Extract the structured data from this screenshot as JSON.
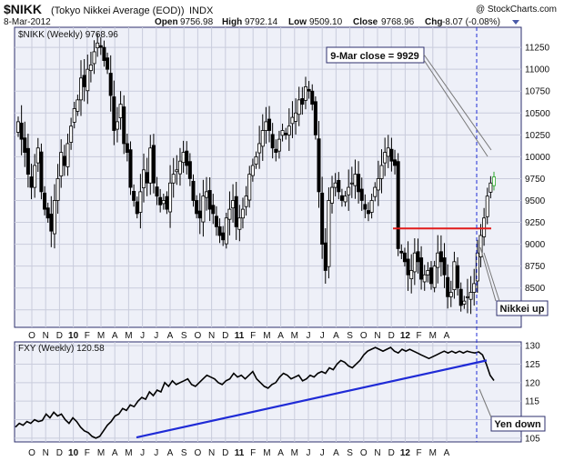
{
  "header": {
    "symbol": "$NIKK",
    "name": "(Tokyo Nikkei Average (EOD))",
    "exchange": "INDX",
    "copyright": "@ StockCharts.com",
    "date": "8-Mar-2012",
    "open_label": "Open",
    "open": "9756.98",
    "high_label": "High",
    "high": "9792.14",
    "low_label": "Low",
    "low": "9509.10",
    "close_label": "Close",
    "close": "9768.96",
    "chg_label": "Chg",
    "chg": "-8.07 (-0.08%)"
  },
  "colors": {
    "frame": "#2d2f6e",
    "panel": "#eef0f8",
    "grid": "#c9ccdc",
    "trend_blue": "#1f2bd6",
    "resistance_red": "#e11b1b",
    "callout_blue": "#1f1fbf",
    "callout_green": "#1c8a1c",
    "callout_red": "#cc1111",
    "last_bar_green": "#2aa52a"
  },
  "chart_data": [
    {
      "type": "candlestick",
      "title": "$NIKK (Weekly) 9768.96",
      "legend_label": "$NIKK (Weekly) 9768.96",
      "ylim": [
        8050,
        11480
      ],
      "y_ticks": [
        8250,
        8500,
        8750,
        9000,
        9250,
        9500,
        9750,
        10000,
        10250,
        10500,
        10750,
        11000,
        11250
      ],
      "x_ticks": [
        "O",
        "N",
        "D",
        "10",
        "F",
        "M",
        "A",
        "M",
        "J",
        "J",
        "A",
        "S",
        "O",
        "N",
        "D",
        "11",
        "F",
        "M",
        "A",
        "M",
        "J",
        "J",
        "A",
        "S",
        "O",
        "N",
        "D",
        "12",
        "F",
        "M",
        "A"
      ],
      "grid": true,
      "closes": [
        10400,
        10200,
        10050,
        9800,
        9650,
        9900,
        10100,
        9600,
        9400,
        9300,
        9150,
        9500,
        9750,
        10050,
        9900,
        10150,
        10350,
        10550,
        10650,
        10900,
        10800,
        11000,
        11050,
        11200,
        11300,
        11250,
        11100,
        11000,
        10700,
        10300,
        10400,
        10600,
        10150,
        10050,
        9650,
        9500,
        9350,
        9600,
        9850,
        9700,
        10100,
        9700,
        9550,
        9450,
        9500,
        9400,
        9700,
        9800,
        9850,
        9950,
        10050,
        9900,
        9750,
        9500,
        9350,
        9300,
        9550,
        9600,
        9400,
        9350,
        9200,
        9100,
        9050,
        9300,
        9400,
        9500,
        9200,
        9300,
        9400,
        9550,
        9800,
        9900,
        10000,
        10150,
        10300,
        10400,
        10300,
        10100,
        10050,
        10200,
        10300,
        10250,
        10350,
        10450,
        10500,
        10650,
        10600,
        10800,
        10750,
        10600,
        10250,
        9600,
        9000,
        8700,
        9500,
        9650,
        9700,
        9600,
        9500,
        9550,
        9650,
        9700,
        9800,
        9600,
        9500,
        9400,
        9350,
        9500,
        9650,
        9750,
        9900,
        10050,
        10100,
        9950,
        9900,
        8950,
        8900,
        8800,
        8650,
        8700,
        8900,
        8800,
        8600,
        8650,
        8700,
        8550,
        8750,
        8900,
        8800,
        8650,
        8400,
        8450,
        8800,
        8500,
        8300,
        8350,
        8400,
        8450,
        8550,
        8900,
        9100,
        9300,
        9550,
        9700,
        9768.96
      ],
      "resistance_level": 9180,
      "annotations": [
        "9-Mar close = 9929",
        "Nikkei up"
      ]
    },
    {
      "type": "line",
      "title": "FXY (Weekly) 120.58",
      "legend_label": "FXY (Weekly) 120.58",
      "ylim": [
        104,
        131
      ],
      "y_ticks": [
        105,
        110,
        115,
        120,
        125,
        130
      ],
      "x_ticks": [
        "O",
        "N",
        "D",
        "10",
        "F",
        "M",
        "A",
        "M",
        "J",
        "J",
        "A",
        "S",
        "O",
        "N",
        "D",
        "11",
        "F",
        "M",
        "A",
        "M",
        "J",
        "J",
        "A",
        "S",
        "O",
        "N",
        "D",
        "12",
        "F",
        "M",
        "A"
      ],
      "grid": true,
      "values": [
        108,
        109,
        108.5,
        109.5,
        109,
        110,
        109.5,
        109.8,
        111.5,
        110.5,
        112,
        111,
        111.5,
        110,
        109,
        110.5,
        109.5,
        108,
        107,
        106.5,
        105.5,
        105,
        105.5,
        107,
        108.5,
        109.5,
        111,
        111.5,
        113,
        112.5,
        114,
        113.5,
        115,
        116,
        115.5,
        117.5,
        116.5,
        118,
        117.5,
        120,
        119,
        120.5,
        119.5,
        120,
        120.5,
        121,
        119.5,
        119,
        120,
        121,
        122,
        121.5,
        121,
        120,
        119.5,
        120.5,
        121,
        122.5,
        121.5,
        122,
        121,
        122,
        123,
        121,
        120,
        119,
        118.5,
        119.5,
        120,
        121.5,
        122.5,
        122,
        121,
        121.5,
        122,
        120.5,
        121,
        122,
        121.5,
        122.5,
        123,
        122.5,
        124,
        123.5,
        125,
        126,
        125.5,
        124.5,
        124,
        125,
        126,
        127.5,
        128.5,
        129,
        129.5,
        129,
        128.5,
        129,
        129.5,
        128.5,
        128,
        129,
        128.5,
        129,
        128.5,
        128,
        127.5,
        127,
        126.5,
        127,
        127.5,
        128,
        128.5,
        128,
        128.5,
        128,
        128.5,
        128,
        128.5,
        128.2,
        128,
        128.3,
        127.5,
        125,
        122,
        120.58
      ],
      "trendline": {
        "from_value": 105.2,
        "to_value": 126
      },
      "annotations": [
        "Yen down"
      ]
    }
  ]
}
